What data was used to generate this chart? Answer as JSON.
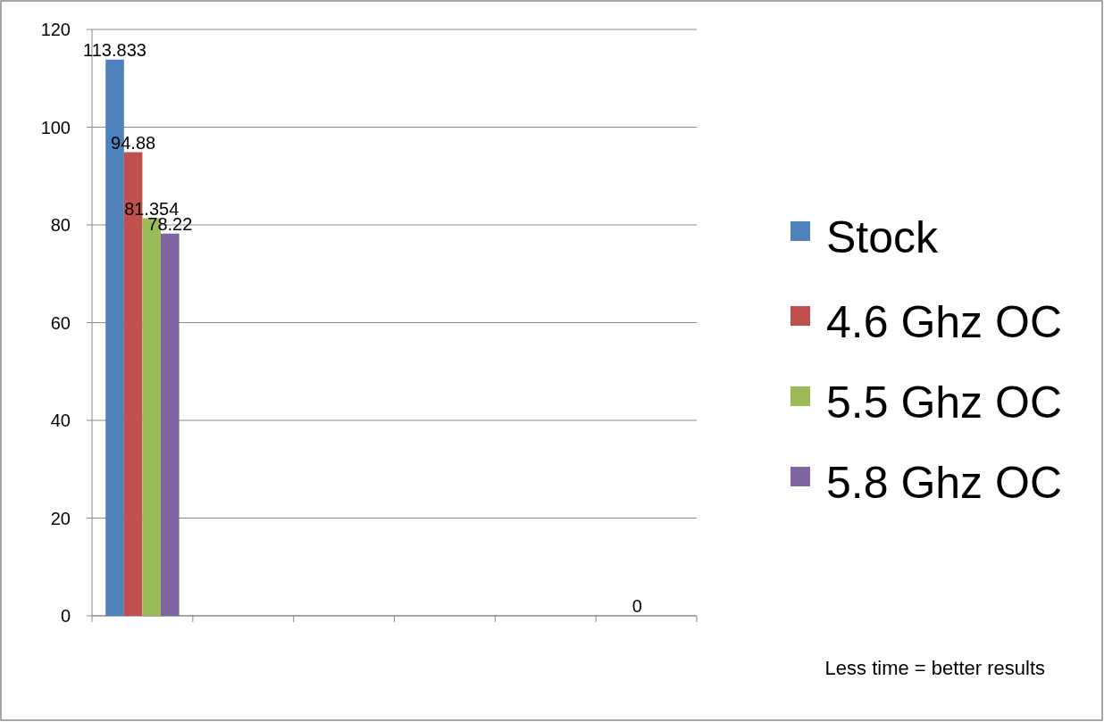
{
  "chart_data": {
    "type": "bar",
    "categories": [
      null,
      null,
      null,
      null,
      null,
      null
    ],
    "series": [
      {
        "name": "Stock",
        "color": "#4f81bd",
        "values": [
          113.833,
          null,
          null,
          null,
          null,
          null
        ],
        "value_labels": [
          "113.833",
          null,
          null,
          null,
          null,
          null
        ]
      },
      {
        "name": "4.6 Ghz OC",
        "color": "#c0504d",
        "values": [
          94.88,
          null,
          null,
          null,
          null,
          0
        ],
        "value_labels": [
          "94.88",
          null,
          null,
          null,
          null,
          "0"
        ]
      },
      {
        "name": "5.5 Ghz OC",
        "color": "#9bbb59",
        "values": [
          81.354,
          null,
          null,
          null,
          null,
          null
        ],
        "value_labels": [
          "81.354",
          null,
          null,
          null,
          null,
          null
        ]
      },
      {
        "name": "5.8 Ghz OC",
        "color": "#8064a2",
        "values": [
          78.22,
          null,
          null,
          null,
          null,
          null
        ],
        "value_labels": [
          "78.22",
          null,
          null,
          null,
          null,
          null
        ]
      }
    ],
    "ylim": [
      0,
      120
    ],
    "yticks": [
      0,
      20,
      40,
      60,
      80,
      100,
      120
    ],
    "grid": "y",
    "legend": "right",
    "annotations": [
      "Less time = better results"
    ]
  }
}
